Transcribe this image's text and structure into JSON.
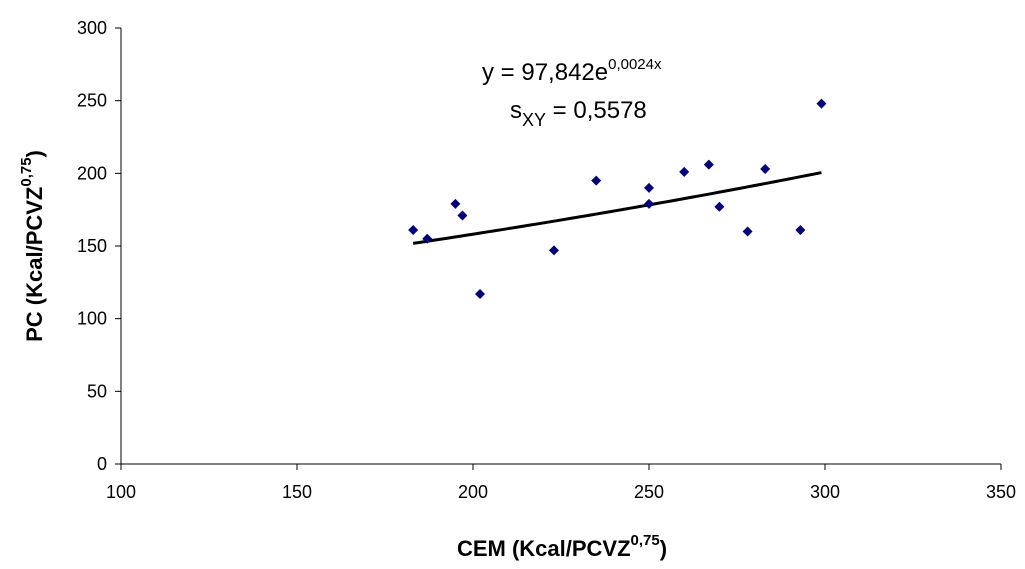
{
  "chart_data": {
    "type": "scatter",
    "xlabel": {
      "text": "CEM (Kcal/PCVZ",
      "sup": "0,75",
      "close": ")"
    },
    "ylabel": {
      "text": "PC (Kcal/PCVZ",
      "sup": "0,75",
      "close": ")"
    },
    "xlim": [
      100,
      350
    ],
    "ylim": [
      0,
      300
    ],
    "x_ticks": [
      100,
      150,
      200,
      250,
      300,
      350
    ],
    "y_ticks": [
      0,
      50,
      100,
      150,
      200,
      250,
      300
    ],
    "grid": false,
    "legend": false,
    "marker_color": "#00007f",
    "marker": "diamond",
    "series": [
      {
        "x": [
          183,
          187,
          195,
          197,
          202,
          223,
          235,
          250,
          250,
          260,
          267,
          270,
          278,
          283,
          293,
          299
        ],
        "y": [
          161,
          155,
          179,
          171,
          117,
          147,
          195,
          190,
          179,
          201,
          206,
          177,
          160,
          203,
          161,
          248
        ]
      }
    ],
    "trendline": {
      "type": "exponential",
      "a": 97.842,
      "b": 0.0024,
      "x_range": [
        183,
        299
      ],
      "color": "#000000"
    },
    "annotations": {
      "equation": {
        "prefix": "y = 97,842e",
        "sup": "0,0024x"
      },
      "sxy": {
        "s": "s",
        "sub": "XY",
        "value": " = 0,5578"
      }
    }
  }
}
